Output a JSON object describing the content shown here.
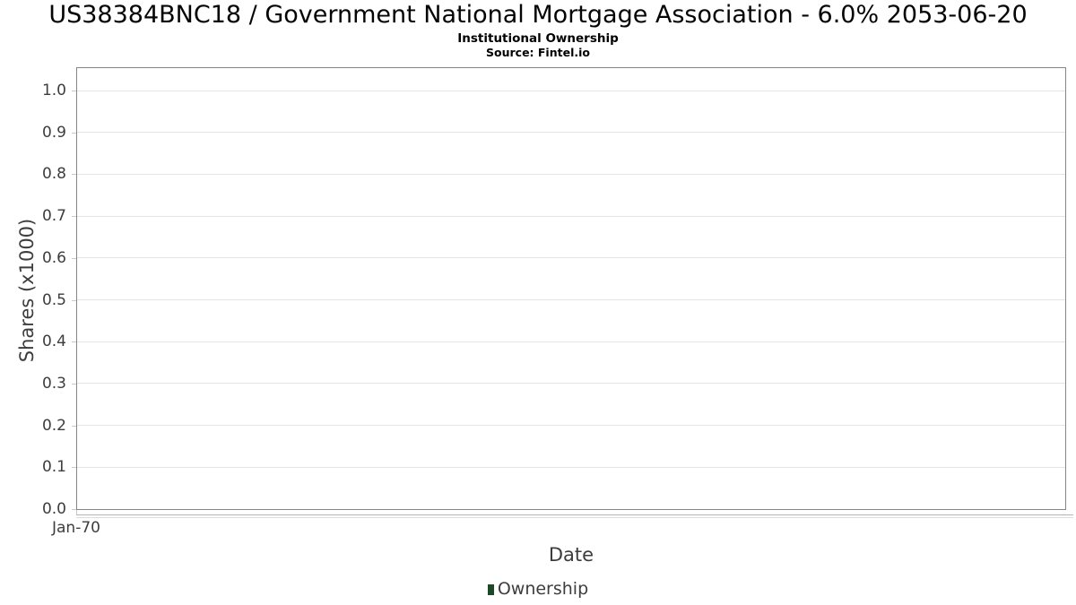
{
  "chart_data": {
    "type": "line",
    "title": "US38384BNC18 / Government National Mortgage Association - 6.0% 2053-06-20",
    "subtitle": "Institutional Ownership",
    "source": "Source: Fintel.io",
    "xlabel": "Date",
    "ylabel": "Shares (x1000)",
    "x_ticks": [
      "Jan-70"
    ],
    "y_tick_labels": [
      "1.0",
      "0.9",
      "0.8",
      "0.7",
      "0.6",
      "0.5",
      "0.4",
      "0.3",
      "0.2",
      "0.1",
      "0.0"
    ],
    "y_tick_values": [
      1.0,
      0.9,
      0.8,
      0.7,
      0.6,
      0.5,
      0.4,
      0.3,
      0.2,
      0.1,
      0.0
    ],
    "ylim": [
      0,
      1.05
    ],
    "grid": true,
    "legend_position": "bottom",
    "series": [
      {
        "name": "Ownership",
        "color": "#1d4a26",
        "x": [],
        "y": []
      }
    ]
  },
  "colors": {
    "legend_swatch": "#1d4a26",
    "gridline": "#e4e4e4",
    "plot_border": "#858585",
    "text_dark": "#050505",
    "text_gray": "#3d3d3d"
  }
}
